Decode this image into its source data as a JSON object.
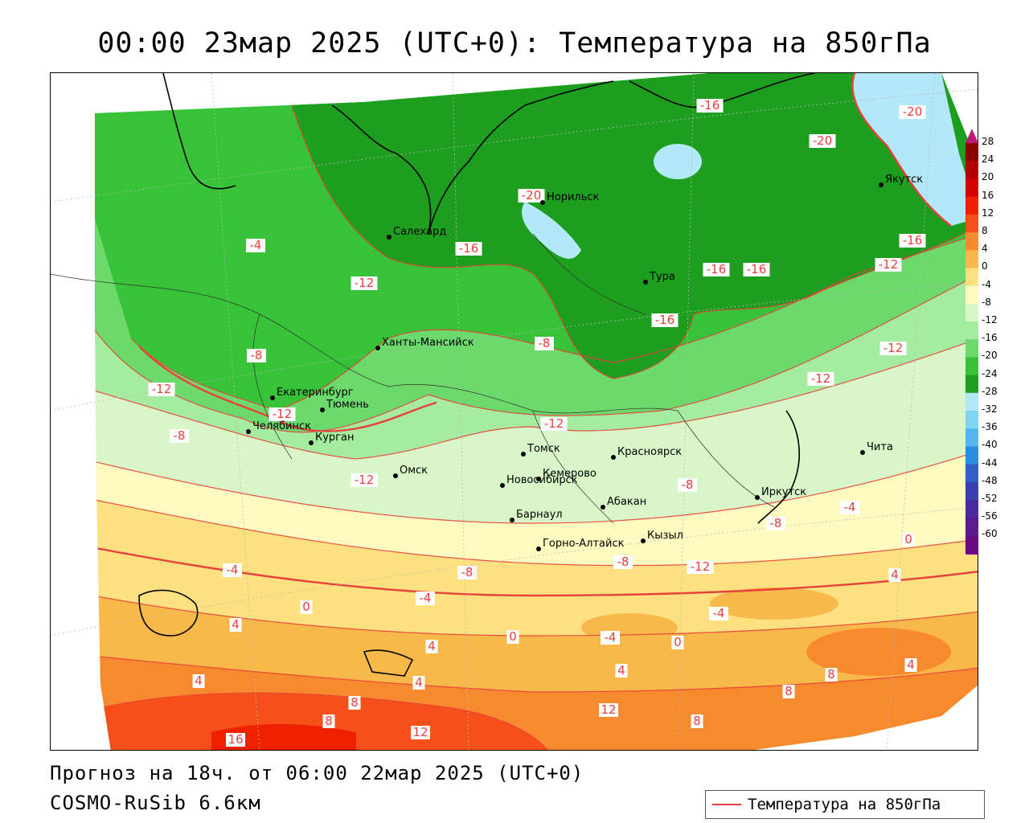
{
  "title": "00:00 23мар 2025 (UTC+0): Температура на 850гПа",
  "footer": {
    "forecast": "Прогноз на 18ч. от 06:00 22мар 2025 (UTC+0)",
    "model": "COSMO-RuSib 6.6км"
  },
  "legend": {
    "label": "Температура на 850гПа",
    "line_color": "#e8413c"
  },
  "colorbar": {
    "ticks": [
      "28",
      "24",
      "20",
      "16",
      "12",
      "8",
      "4",
      "0",
      "-4",
      "-8",
      "-12",
      "-16",
      "-20",
      "-24",
      "-28",
      "-32",
      "-36",
      "-40",
      "-44",
      "-48",
      "-52",
      "-56",
      "-60"
    ],
    "colors": [
      "#8b0000",
      "#b30000",
      "#d40000",
      "#ef2000",
      "#f5501a",
      "#f78a2e",
      "#f9b84a",
      "#fde080",
      "#fffac0",
      "#d8f6c8",
      "#a6eca0",
      "#6cd96c",
      "#38c238",
      "#1e9e1e",
      "#b2e8f8",
      "#80d4f4",
      "#50b8ee",
      "#2a8ee0",
      "#3060c8",
      "#3a40b0",
      "#4a2aa0",
      "#5a1a90",
      "#6a0a80"
    ]
  },
  "cities": [
    {
      "name": "Салехард"
    },
    {
      "name": "Норильск"
    },
    {
      "name": "Якутск"
    },
    {
      "name": "Тура"
    },
    {
      "name": "Ханты-Мансийск"
    },
    {
      "name": "Екатеринбург"
    },
    {
      "name": "Тюмень"
    },
    {
      "name": "Челябинск"
    },
    {
      "name": "Курган"
    },
    {
      "name": "Омск"
    },
    {
      "name": "Новосибирск"
    },
    {
      "name": "Томск"
    },
    {
      "name": "Кемерово"
    },
    {
      "name": "Красноярск"
    },
    {
      "name": "Барнаул"
    },
    {
      "name": "Абакан"
    },
    {
      "name": "Иркутск"
    },
    {
      "name": "Чита"
    },
    {
      "name": "Горно-Алтайск"
    },
    {
      "name": "Кызыл"
    }
  ],
  "contour_labels": [
    "-16",
    "-20",
    "-20",
    "-20",
    "-4",
    "-16",
    "-12",
    "-16",
    "-16",
    "-12",
    "-16",
    "-16",
    "-8",
    "-8",
    "-12",
    "-12",
    "-12",
    "-8",
    "-12",
    "-12",
    "-8",
    "-12",
    "-8",
    "-4",
    "-4",
    "-12",
    "-4",
    "-8",
    "-8",
    "-4",
    "0",
    "4",
    "0",
    "4",
    "0",
    "4",
    "-4",
    "0",
    "4",
    "4",
    "4",
    "4",
    "8",
    "8",
    "12",
    "12",
    "8",
    "8",
    "8",
    "16"
  ],
  "colors": {
    "cold_dark_green": "#1e9e1e",
    "green": "#38c238",
    "light_green": "#6cd96c",
    "pale_green": "#a6eca0",
    "very_pale_green": "#d8f6c8",
    "pale_yellow": "#fffac0",
    "yellow": "#fde080",
    "orange": "#f9b84a",
    "dark_orange": "#f78a2e",
    "red_orange": "#f5501a",
    "light_blue": "#b2e8f8",
    "contour_red": "#e8413c"
  }
}
